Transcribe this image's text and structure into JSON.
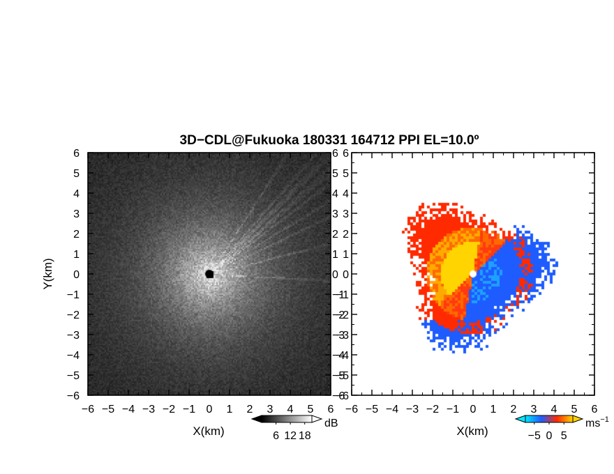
{
  "chart_data": {
    "title": "3D−CDL@Fukuoka 180331 164712 PPI EL=10.0º",
    "panels": [
      {
        "type": "heatmap",
        "variable": "signal intensity",
        "xlabel": "X(km)",
        "ylabel": "Y(km)",
        "xlim": [
          -6,
          6
        ],
        "ylim": [
          -6,
          6
        ],
        "xticks": [
          -6,
          -5,
          -4,
          -3,
          -2,
          -1,
          0,
          1,
          2,
          3,
          4,
          5,
          6
        ],
        "yticks": [
          -6,
          -5,
          -4,
          -3,
          -2,
          -1,
          0,
          1,
          2,
          3,
          4,
          5,
          6
        ],
        "tick_labels": [
          "−6",
          "−5",
          "−4",
          "−3",
          "−2",
          "−1",
          "0",
          "1",
          "2",
          "3",
          "4",
          "5",
          "6"
        ],
        "colorbar": {
          "unit": "dB",
          "tick_values": [
            6,
            12,
            18
          ],
          "tick_labels": [
            "6",
            "12",
            "18"
          ],
          "colormap": "grayscale",
          "extend": "both"
        },
        "background_color": "#141414"
      },
      {
        "type": "heatmap",
        "variable": "radial velocity",
        "xlabel": "X(km)",
        "xlim": [
          -6,
          6
        ],
        "ylim": [
          -6,
          6
        ],
        "xticks": [
          -6,
          -5,
          -4,
          -3,
          -2,
          -1,
          0,
          1,
          2,
          3,
          4,
          5,
          6
        ],
        "yticks": [
          -6,
          -5,
          -4,
          -3,
          -2,
          -1,
          0,
          1,
          2,
          3,
          4,
          5,
          6
        ],
        "tick_labels": [
          "−6",
          "−5",
          "−4",
          "−3",
          "−2",
          "−1",
          "0",
          "1",
          "2",
          "3",
          "4",
          "5",
          "6"
        ],
        "colorbar": {
          "unit_main": "ms",
          "unit_sup": "−1",
          "tick_values": [
            -5,
            0,
            5
          ],
          "tick_labels": [
            "−5",
            "0",
            "5"
          ],
          "colors": [
            "#00e8ff",
            "#1e5cff",
            "#ff2a00",
            "#ffd400"
          ],
          "extend": "both"
        },
        "background_color": "#ffffff"
      }
    ]
  }
}
